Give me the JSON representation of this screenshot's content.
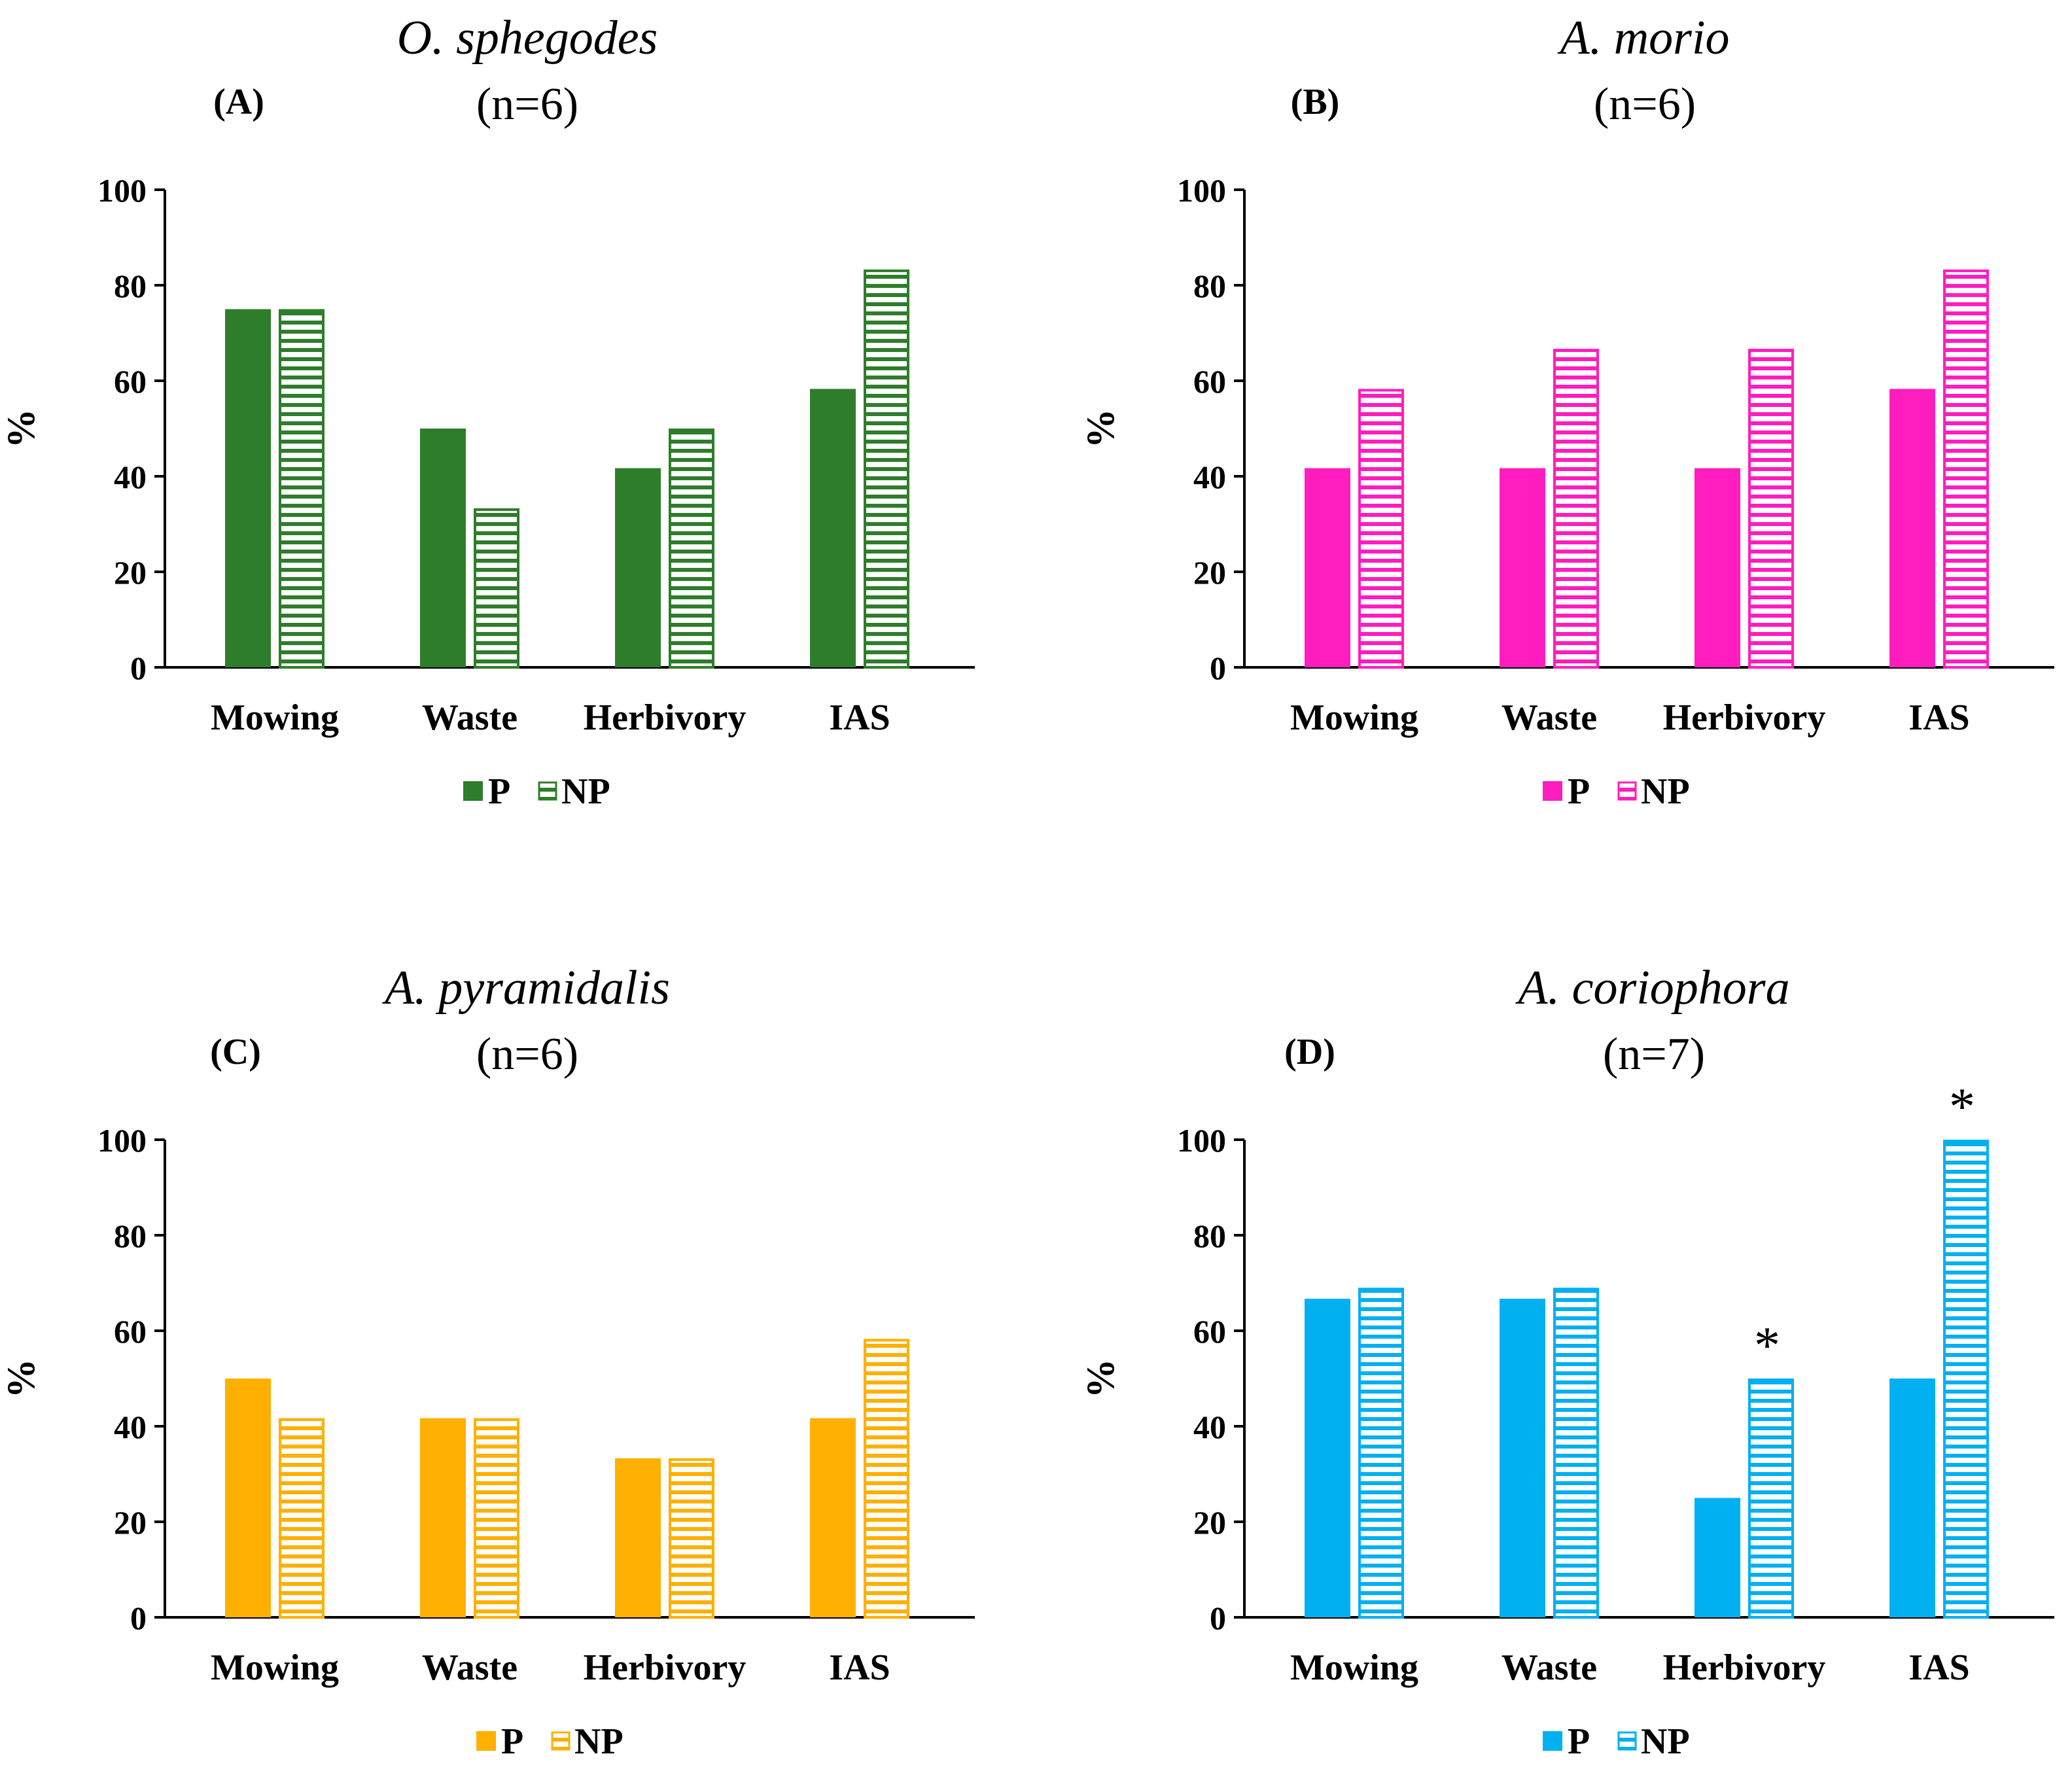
{
  "chart_data": [
    {
      "type": "bar",
      "panel_label": "(A)",
      "title": "O. sphegodes",
      "subtitle": "(n=6)",
      "ylabel": "%",
      "ylim": [
        0,
        100
      ],
      "yticks": [
        0,
        20,
        40,
        60,
        80,
        100
      ],
      "categories": [
        "Mowing",
        "Waste",
        "Herbivory",
        "IAS"
      ],
      "color": "#2e7d2a",
      "series": [
        {
          "name": "P",
          "style": "solid",
          "values": [
            75,
            50,
            41.7,
            58.3
          ]
        },
        {
          "name": "NP",
          "style": "hatched",
          "values": [
            75,
            33.3,
            50,
            83.3
          ]
        }
      ],
      "significance": [],
      "legend": "bottom-center"
    },
    {
      "type": "bar",
      "panel_label": "(B)",
      "title": "A. morio",
      "subtitle": "(n=6)",
      "ylabel": "%",
      "ylim": [
        0,
        100
      ],
      "yticks": [
        0,
        20,
        40,
        60,
        80,
        100
      ],
      "categories": [
        "Mowing",
        "Waste",
        "Herbivory",
        "IAS"
      ],
      "color": "#ff1dbf",
      "series": [
        {
          "name": "P",
          "style": "solid",
          "values": [
            41.7,
            41.7,
            41.7,
            58.3
          ]
        },
        {
          "name": "NP",
          "style": "hatched",
          "values": [
            58.3,
            66.7,
            66.7,
            83.3
          ]
        }
      ],
      "significance": [],
      "legend": "bottom-center"
    },
    {
      "type": "bar",
      "panel_label": "(C)",
      "title": "A. pyramidalis",
      "subtitle": "(n=6)",
      "ylabel": "%",
      "ylim": [
        0,
        100
      ],
      "yticks": [
        0,
        20,
        40,
        60,
        80,
        100
      ],
      "categories": [
        "Mowing",
        "Waste",
        "Herbivory",
        "IAS"
      ],
      "color": "#ffb000",
      "series": [
        {
          "name": "P",
          "style": "solid",
          "values": [
            50,
            41.7,
            33.3,
            41.7
          ]
        },
        {
          "name": "NP",
          "style": "hatched",
          "values": [
            41.7,
            41.7,
            33.3,
            58.3
          ]
        }
      ],
      "significance": [],
      "legend": "bottom-center"
    },
    {
      "type": "bar",
      "panel_label": "(D)",
      "title": "A. coriophora",
      "subtitle": "(n=7)",
      "ylabel": "%",
      "ylim": [
        0,
        100
      ],
      "yticks": [
        0,
        20,
        40,
        60,
        80,
        100
      ],
      "categories": [
        "Mowing",
        "Waste",
        "Herbivory",
        "IAS"
      ],
      "color": "#00b0f0",
      "series": [
        {
          "name": "P",
          "style": "solid",
          "values": [
            66.7,
            66.7,
            25,
            50
          ]
        },
        {
          "name": "NP",
          "style": "hatched",
          "values": [
            69,
            69,
            50,
            100
          ]
        }
      ],
      "significance": [
        {
          "category": "Herbivory",
          "series": "NP",
          "mark": "*"
        },
        {
          "category": "IAS",
          "series": "NP",
          "mark": "*"
        }
      ],
      "legend": "bottom-center"
    }
  ]
}
